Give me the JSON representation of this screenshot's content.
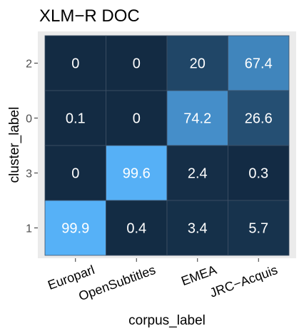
{
  "chart_data": {
    "type": "heatmap",
    "title": "XLM−R DOC",
    "xlabel": "corpus_label",
    "ylabel": "cluster_label",
    "x_categories": [
      "Europarl",
      "OpenSubtitles",
      "EMEA",
      "JRC−Acquis"
    ],
    "y_categories": [
      "2",
      "0",
      "3",
      "1"
    ],
    "values": [
      [
        0,
        0,
        20,
        67.4
      ],
      [
        0.1,
        0,
        74.2,
        26.6
      ],
      [
        0,
        99.6,
        2.4,
        0.3
      ],
      [
        99.9,
        0.4,
        3.4,
        5.7
      ]
    ],
    "value_labels": [
      [
        "0",
        "0",
        "20",
        "67.4"
      ],
      [
        "0.1",
        "0",
        "74.2",
        "26.6"
      ],
      [
        "0",
        "99.6",
        "2.4",
        "0.3"
      ],
      [
        "99.9",
        "0.4",
        "3.4",
        "5.7"
      ]
    ],
    "value_range": [
      0,
      100
    ],
    "color_low": "#132B43",
    "color_high": "#56B1F7",
    "panel_background": "#ebebeb",
    "legend": "none"
  }
}
